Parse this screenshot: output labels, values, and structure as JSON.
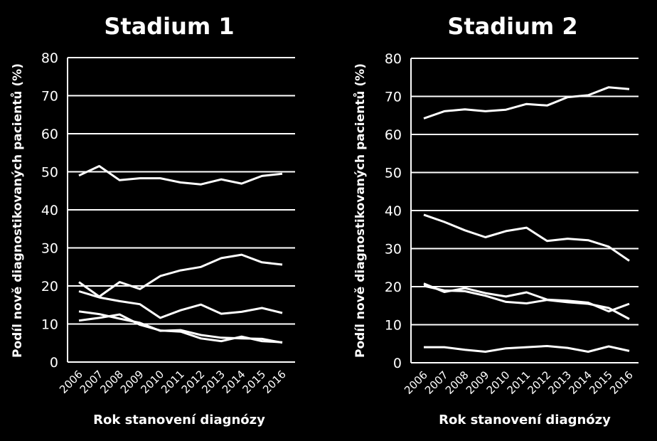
{
  "colors": {
    "background": "#000000",
    "foreground": "#ffffff"
  },
  "chart_data": [
    {
      "type": "line",
      "title": "Stadium 1",
      "xlabel": "Rok stanovení diagnózy",
      "ylabel": "Podíl nově diagnostikovaných pacientů (%)",
      "ylim": [
        0,
        80
      ],
      "yticks": [
        "0",
        "10",
        "20",
        "30",
        "40",
        "50",
        "60",
        "70",
        "80"
      ],
      "grid": true,
      "x": [
        "2006",
        "2007",
        "2008",
        "2009",
        "2010",
        "2011",
        "2012",
        "2013",
        "2014",
        "2015",
        "2016"
      ],
      "series": [
        {
          "values": [
            49.0,
            51.5,
            47.8,
            48.3,
            48.3,
            47.2,
            46.7,
            48.0,
            46.9,
            48.9,
            49.5
          ]
        },
        {
          "values": [
            21.0,
            17.2,
            21.0,
            19.2,
            22.6,
            24.1,
            25.0,
            27.3,
            28.2,
            26.2,
            25.6
          ]
        },
        {
          "values": [
            18.6,
            17.0,
            16.0,
            15.2,
            11.6,
            13.6,
            15.1,
            12.7,
            13.2,
            14.2,
            12.9
          ]
        },
        {
          "values": [
            13.3,
            12.6,
            11.4,
            10.3,
            8.2,
            8.4,
            7.1,
            6.4,
            6.2,
            6.1,
            5.1
          ]
        },
        {
          "values": [
            10.9,
            11.6,
            12.5,
            9.8,
            8.3,
            8.0,
            6.2,
            5.5,
            6.7,
            5.5,
            5.2
          ]
        }
      ]
    },
    {
      "type": "line",
      "title": "Stadium 2",
      "xlabel": "Rok stanovení diagnózy",
      "ylabel": "Podíl nově diagnostikovaných pacientů (%)",
      "ylim": [
        0,
        80
      ],
      "yticks": [
        "0",
        "10",
        "20",
        "30",
        "40",
        "50",
        "60",
        "70",
        "80"
      ],
      "grid": true,
      "x": [
        "2006",
        "2007",
        "2008",
        "2009",
        "2010",
        "2011",
        "2012",
        "2013",
        "2014",
        "2015",
        "2016"
      ],
      "series": [
        {
          "values": [
            64.2,
            66.1,
            66.6,
            66.1,
            66.5,
            68.0,
            67.6,
            69.8,
            70.3,
            72.4,
            71.9
          ]
        },
        {
          "values": [
            38.9,
            37.0,
            34.8,
            33.0,
            34.6,
            35.5,
            32.0,
            32.6,
            32.2,
            30.5,
            26.8
          ]
        },
        {
          "values": [
            20.8,
            18.6,
            19.6,
            18.3,
            17.4,
            18.5,
            16.6,
            16.3,
            15.8,
            13.5,
            15.5
          ]
        },
        {
          "values": [
            20.2,
            19.0,
            18.8,
            17.6,
            16.0,
            15.6,
            16.5,
            15.9,
            15.5,
            14.4,
            11.5
          ]
        },
        {
          "values": [
            4.1,
            4.1,
            3.4,
            2.9,
            3.8,
            4.1,
            4.4,
            3.9,
            2.9,
            4.3,
            3.1
          ]
        }
      ]
    }
  ]
}
